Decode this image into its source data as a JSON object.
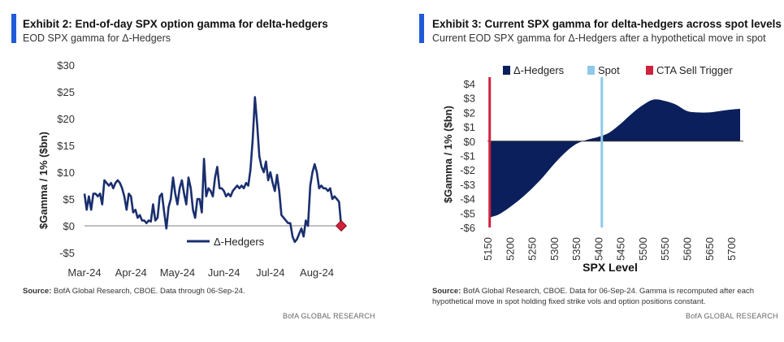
{
  "left": {
    "title": "Exhibit 2: End-of-day SPX option gamma for delta-hedgers",
    "subtitle": "EOD SPX gamma for Δ-Hedgers",
    "source_label": "Source:",
    "source_text": " BofA Global Research, CBOE. Data through 06-Sep-24.",
    "brand": "BofA GLOBAL RESEARCH"
  },
  "right": {
    "title": "Exhibit 3: Current SPX gamma for delta-hedgers across spot levels",
    "subtitle": "Current EOD SPX gamma for Δ-Hedgers after a hypothetical move in spot",
    "source_label": "Source:",
    "source_text": " BofA Global Research, CBOE. Data for 06-Sep-24. Gamma is recomputed after each hypothetical move in spot holding fixed strike vols and option positions constant.",
    "brand": "BofA GLOBAL RESEARCH"
  },
  "chart_data": [
    {
      "type": "line",
      "title": "Exhibit 2: End-of-day SPX option gamma for delta-hedgers",
      "subtitle": "EOD SPX gamma for Δ-Hedgers",
      "xlabel": "",
      "ylabel": "$Gamma / 1% ($bn)",
      "ylim": [
        -5,
        30
      ],
      "yticks": [
        -5,
        0,
        5,
        10,
        15,
        20,
        25,
        30
      ],
      "ytick_labels": [
        "-$5",
        "$0",
        "$5",
        "$10",
        "$15",
        "$20",
        "$25",
        "$30"
      ],
      "xtick_labels": [
        "Mar-24",
        "Apr-24",
        "May-24",
        "Jun-24",
        "Jul-24",
        "Aug-24"
      ],
      "legend": "bottom-center",
      "grid": false,
      "line_color": "#1a2f6e",
      "marker_color": "#d0213d",
      "series": [
        {
          "name": "Δ-Hedgers",
          "values": [
            6,
            3,
            5.5,
            3,
            6,
            6,
            5.5,
            6,
            4,
            8.5,
            8,
            7.5,
            8,
            7,
            8,
            8.5,
            8,
            7,
            5.5,
            3,
            6,
            5.5,
            2.5,
            3,
            1.5,
            2,
            1,
            1,
            0.5,
            1,
            0.8,
            4,
            1,
            1.5,
            5.5,
            6,
            2.5,
            -0.5,
            3.5,
            5,
            9,
            6,
            4,
            7,
            8.5,
            6,
            4,
            9,
            7,
            3,
            1.5,
            5,
            5,
            2.5,
            12.5,
            5.5,
            7,
            6.5,
            5.5,
            9,
            11,
            7,
            7,
            6.5,
            5.5,
            6,
            5.5,
            6.5,
            7,
            7.5,
            7,
            7.5,
            7,
            8,
            7.5,
            10.5,
            16,
            24,
            19,
            13,
            11,
            10,
            12,
            8.5,
            10,
            8,
            6.5,
            9.5,
            6.5,
            2,
            1.5,
            1,
            0.5,
            0.5,
            -2,
            -3,
            -2.5,
            -1.5,
            -0.5,
            -2,
            1,
            0,
            7.5,
            10,
            11.5,
            10,
            7,
            7.5,
            7,
            7,
            6.5,
            7,
            5,
            5.5,
            5,
            4.5,
            0
          ]
        }
      ]
    },
    {
      "type": "area",
      "title": "Exhibit 3: Current SPX gamma for delta-hedgers across spot levels",
      "subtitle": "Current EOD SPX gamma for Δ-Hedgers after a hypothetical move in spot",
      "xlabel": "SPX Level",
      "ylabel": "$Gamma / 1% ($bn)",
      "xlim": [
        5150,
        5720
      ],
      "ylim": [
        -6,
        4
      ],
      "xticks": [
        5150,
        5200,
        5250,
        5300,
        5350,
        5400,
        5450,
        5500,
        5550,
        5600,
        5650,
        5700
      ],
      "yticks": [
        4,
        3,
        2,
        1,
        0,
        -1,
        -2,
        -3,
        -4,
        -5,
        -6
      ],
      "ytick_labels": [
        "$4",
        "$3",
        "$2",
        "$1",
        "$0",
        "-$1",
        "-$2",
        "-$3",
        "-$4",
        "-$5",
        "-$6"
      ],
      "legend": "top",
      "grid": false,
      "spot": 5408,
      "cta_sell_trigger": 5155,
      "colors": {
        "area": "#0b1f5c",
        "spot": "#8fc9ea",
        "cta": "#d0213d"
      },
      "legend_entries": [
        "Δ-Hedgers",
        "Spot",
        "CTA Sell Trigger"
      ],
      "series": [
        {
          "name": "Δ-Hedgers",
          "x": [
            5155,
            5175,
            5200,
            5225,
            5250,
            5275,
            5300,
            5325,
            5350,
            5375,
            5400,
            5425,
            5450,
            5475,
            5500,
            5525,
            5550,
            5575,
            5600,
            5625,
            5650,
            5675,
            5700,
            5720
          ],
          "values": [
            -5.3,
            -5.1,
            -4.6,
            -4.0,
            -3.3,
            -2.5,
            -1.6,
            -0.8,
            -0.2,
            0.1,
            0.3,
            0.6,
            1.2,
            1.9,
            2.5,
            2.9,
            2.8,
            2.55,
            2.1,
            2.0,
            2.0,
            2.1,
            2.2,
            2.25
          ]
        }
      ]
    }
  ]
}
